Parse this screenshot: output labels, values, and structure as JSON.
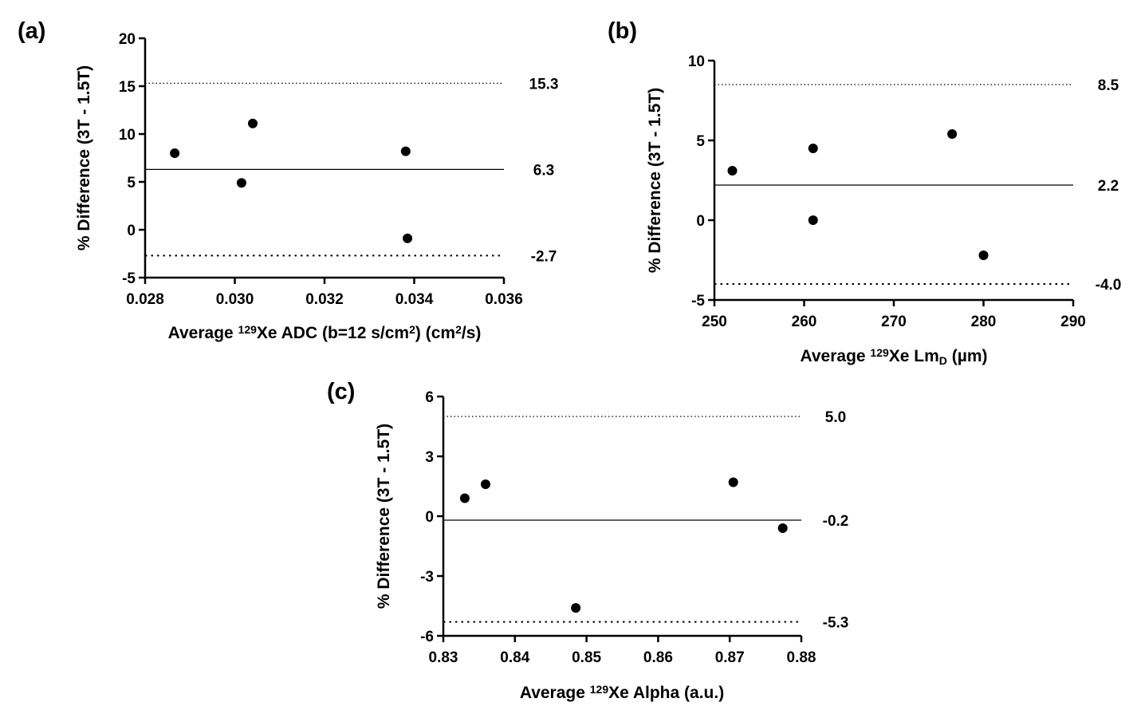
{
  "chart_data": [
    {
      "type": "scatter",
      "panel_label": "(a)",
      "xlabel": {
        "pre": "Average ",
        "sup": "129",
        "mid": "Xe ADC (b=12 s/cm",
        "sup2": "2",
        "mid2": ") (cm",
        "sup3": "2",
        "post": "/s)"
      },
      "ylabel": "% Difference (3T - 1.5T)",
      "xlim": [
        0.028,
        0.036
      ],
      "ylim": [
        -5,
        20
      ],
      "xticks": [
        "0.028",
        "0.030",
        "0.032",
        "0.034",
        "0.036"
      ],
      "xtick_values": [
        0.028,
        0.03,
        0.032,
        0.034,
        0.036
      ],
      "yticks": [
        "-5",
        "0",
        "5",
        "10",
        "15",
        "20"
      ],
      "ytick_values": [
        -5,
        0,
        5,
        10,
        15,
        20
      ],
      "points": [
        {
          "x": 0.02866,
          "y": 8.0
        },
        {
          "x": 0.03015,
          "y": 4.9
        },
        {
          "x": 0.0304,
          "y": 11.1
        },
        {
          "x": 0.03381,
          "y": 8.2
        },
        {
          "x": 0.03385,
          "y": -0.9
        }
      ],
      "mean_line": {
        "value": 6.3,
        "label": "6.3"
      },
      "upper_loa": {
        "value": 15.3,
        "label": "15.3"
      },
      "lower_loa": {
        "value": -2.7,
        "label": "-2.7"
      },
      "grid": false
    },
    {
      "type": "scatter",
      "panel_label": "(b)",
      "xlabel": {
        "pre": "Average ",
        "sup": "129",
        "mid": "Xe Lm",
        "sub": "D",
        "post": " (µm)"
      },
      "ylabel": "% Difference (3T - 1.5T)",
      "xlim": [
        250,
        290
      ],
      "ylim": [
        -5,
        10
      ],
      "xticks": [
        "250",
        "260",
        "270",
        "280",
        "290"
      ],
      "xtick_values": [
        250,
        260,
        270,
        280,
        290
      ],
      "yticks": [
        "-5",
        "0",
        "5",
        "10"
      ],
      "ytick_values": [
        -5,
        0,
        5,
        10
      ],
      "points": [
        {
          "x": 252.0,
          "y": 3.1
        },
        {
          "x": 261.0,
          "y": 4.5
        },
        {
          "x": 261.0,
          "y": 0.0
        },
        {
          "x": 276.5,
          "y": 5.4
        },
        {
          "x": 280.0,
          "y": -2.2
        }
      ],
      "mean_line": {
        "value": 2.2,
        "label": "2.2"
      },
      "upper_loa": {
        "value": 8.5,
        "label": "8.5"
      },
      "lower_loa": {
        "value": -4.0,
        "label": "-4.0"
      },
      "grid": false
    },
    {
      "type": "scatter",
      "panel_label": "(c)",
      "xlabel": {
        "pre": "Average ",
        "sup": "129",
        "mid": "Xe Alpha (a.u.)",
        "post": ""
      },
      "ylabel": "% Difference (3T - 1.5T)",
      "xlim": [
        0.83,
        0.88
      ],
      "ylim": [
        -6,
        6
      ],
      "xticks": [
        "0.83",
        "0.84",
        "0.85",
        "0.86",
        "0.87",
        "0.88"
      ],
      "xtick_values": [
        0.83,
        0.84,
        0.85,
        0.86,
        0.87,
        0.88
      ],
      "yticks": [
        "-6",
        "-3",
        "0",
        "3",
        "6"
      ],
      "ytick_values": [
        -6,
        -3,
        0,
        3,
        6
      ],
      "points": [
        {
          "x": 0.833,
          "y": 0.9
        },
        {
          "x": 0.8359,
          "y": 1.6
        },
        {
          "x": 0.8485,
          "y": -4.6
        },
        {
          "x": 0.8705,
          "y": 1.7
        },
        {
          "x": 0.8774,
          "y": -0.6
        }
      ],
      "mean_line": {
        "value": -0.2,
        "label": "-0.2"
      },
      "upper_loa": {
        "value": 5.0,
        "label": "5.0"
      },
      "lower_loa": {
        "value": -5.3,
        "label": "-5.3"
      },
      "grid": false
    }
  ]
}
